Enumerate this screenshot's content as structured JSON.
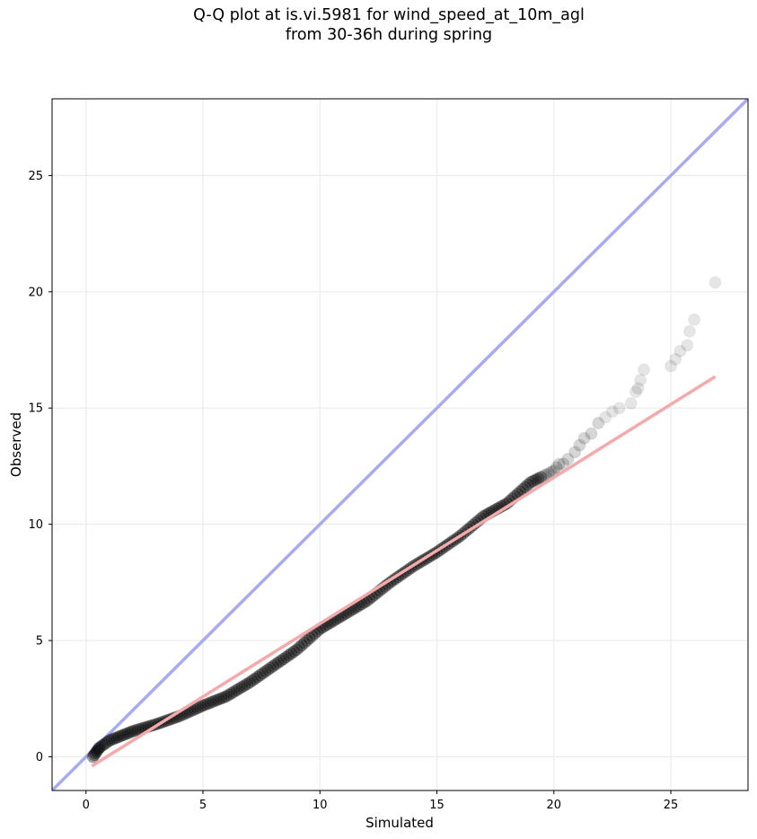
{
  "chart_data": {
    "type": "scatter",
    "title": "Q-Q plot at is.vi.5981 for wind_speed_at_10m_agl",
    "subtitle": "from 30-36h during spring",
    "xlabel": "Simulated",
    "ylabel": "Observed",
    "xlim": [
      -1.45,
      28.3
    ],
    "ylim": [
      -1.45,
      28.3
    ],
    "xticks": [
      0,
      5,
      10,
      15,
      20,
      25
    ],
    "yticks": [
      0,
      5,
      10,
      15,
      20,
      25
    ],
    "grid": true,
    "legend": "none",
    "identity_line": {
      "color": "#a8aaf2",
      "points": [
        [
          -1.45,
          -1.45
        ],
        [
          28.3,
          28.3
        ]
      ]
    },
    "fit_line": {
      "color": "#f4aaaa",
      "points": [
        [
          0.25,
          -0.4
        ],
        [
          26.9,
          16.35
        ]
      ]
    },
    "anchors": [
      [
        0.3,
        0.0
      ],
      [
        0.4,
        0.15
      ],
      [
        0.5,
        0.3
      ],
      [
        0.6,
        0.42
      ],
      [
        0.8,
        0.55
      ],
      [
        1.0,
        0.7
      ],
      [
        1.5,
        0.9
      ],
      [
        2.0,
        1.1
      ],
      [
        3.0,
        1.4
      ],
      [
        4.0,
        1.75
      ],
      [
        5.0,
        2.2
      ],
      [
        6.0,
        2.6
      ],
      [
        7.0,
        3.2
      ],
      [
        8.0,
        3.9
      ],
      [
        9.0,
        4.6
      ],
      [
        10.0,
        5.5
      ],
      [
        11.0,
        6.1
      ],
      [
        12.0,
        6.7
      ],
      [
        13.0,
        7.5
      ],
      [
        14.0,
        8.2
      ],
      [
        15.0,
        8.8
      ],
      [
        16.0,
        9.5
      ],
      [
        17.0,
        10.35
      ],
      [
        18.0,
        10.9
      ],
      [
        19.0,
        11.8
      ],
      [
        20.0,
        12.3
      ],
      [
        21.0,
        13.6
      ],
      [
        22.0,
        14.7
      ],
      [
        23.0,
        15.1
      ]
    ],
    "tail_points": [
      [
        20.4,
        12.6
      ],
      [
        20.6,
        12.8
      ],
      [
        20.9,
        13.1
      ],
      [
        21.1,
        13.4
      ],
      [
        21.3,
        13.7
      ],
      [
        21.6,
        13.9
      ],
      [
        21.9,
        14.35
      ],
      [
        22.2,
        14.6
      ],
      [
        22.5,
        14.85
      ],
      [
        22.8,
        15.0
      ],
      [
        23.3,
        15.2
      ],
      [
        23.5,
        15.7
      ],
      [
        23.6,
        15.85
      ],
      [
        23.7,
        16.2
      ],
      [
        23.85,
        16.65
      ],
      [
        25.0,
        16.8
      ],
      [
        25.2,
        17.1
      ],
      [
        25.4,
        17.45
      ],
      [
        25.7,
        17.7
      ],
      [
        25.8,
        18.3
      ],
      [
        26.0,
        18.8
      ],
      [
        26.9,
        20.4
      ]
    ]
  }
}
